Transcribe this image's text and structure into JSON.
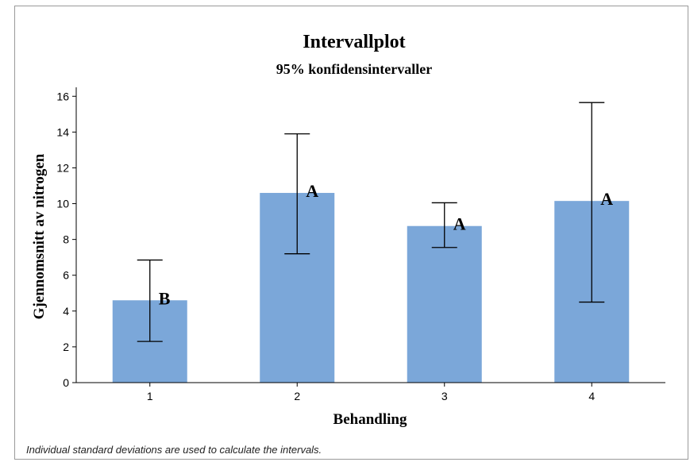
{
  "chart_data": {
    "type": "bar",
    "title": "Intervallplot",
    "subtitle": "95% konfidensintervaller",
    "xlabel": "Behandling",
    "ylabel": "Gjennomsnitt av nitrogen",
    "categories": [
      "1",
      "2",
      "3",
      "4"
    ],
    "values": [
      4.6,
      10.6,
      8.75,
      10.15
    ],
    "ci_lower": [
      2.3,
      7.2,
      7.55,
      4.5
    ],
    "ci_upper": [
      6.85,
      13.9,
      10.05,
      15.65
    ],
    "group_letters": [
      "B",
      "A",
      "A",
      "A"
    ],
    "ylim": [
      0,
      16.5
    ],
    "yticks": [
      0,
      2,
      4,
      6,
      8,
      10,
      12,
      14,
      16
    ],
    "bar_color": "#7ba7d9",
    "error_bar_color": "#000000",
    "grid": false,
    "legend": false
  },
  "footnote": "Individual standard deviations are used to calculate the intervals."
}
